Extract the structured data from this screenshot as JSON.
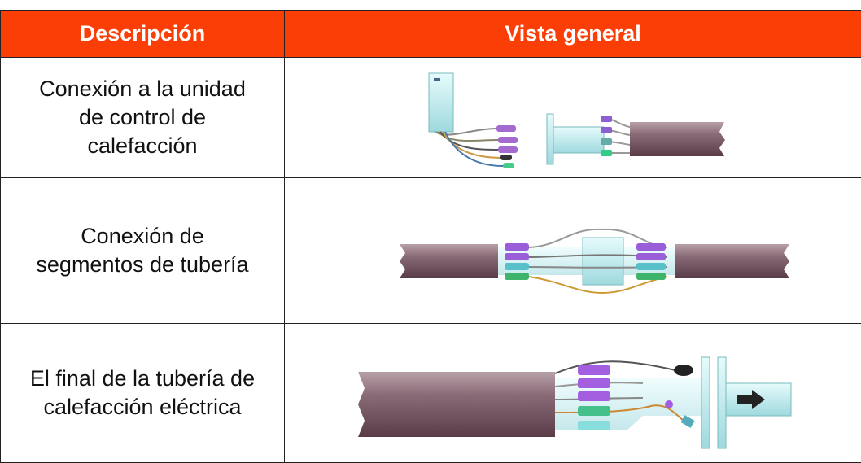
{
  "header": {
    "columns": [
      "Descripción",
      "Vista general"
    ]
  },
  "table": {
    "rows": [
      {
        "description": [
          "Conexión a la unidad",
          "de control de",
          "calefacción"
        ]
      },
      {
        "description": [
          "Conexión de",
          "segmentos de tubería"
        ]
      },
      {
        "description": [
          "El final de la tubería de",
          "calefacción eléctrica"
        ]
      }
    ]
  }
}
